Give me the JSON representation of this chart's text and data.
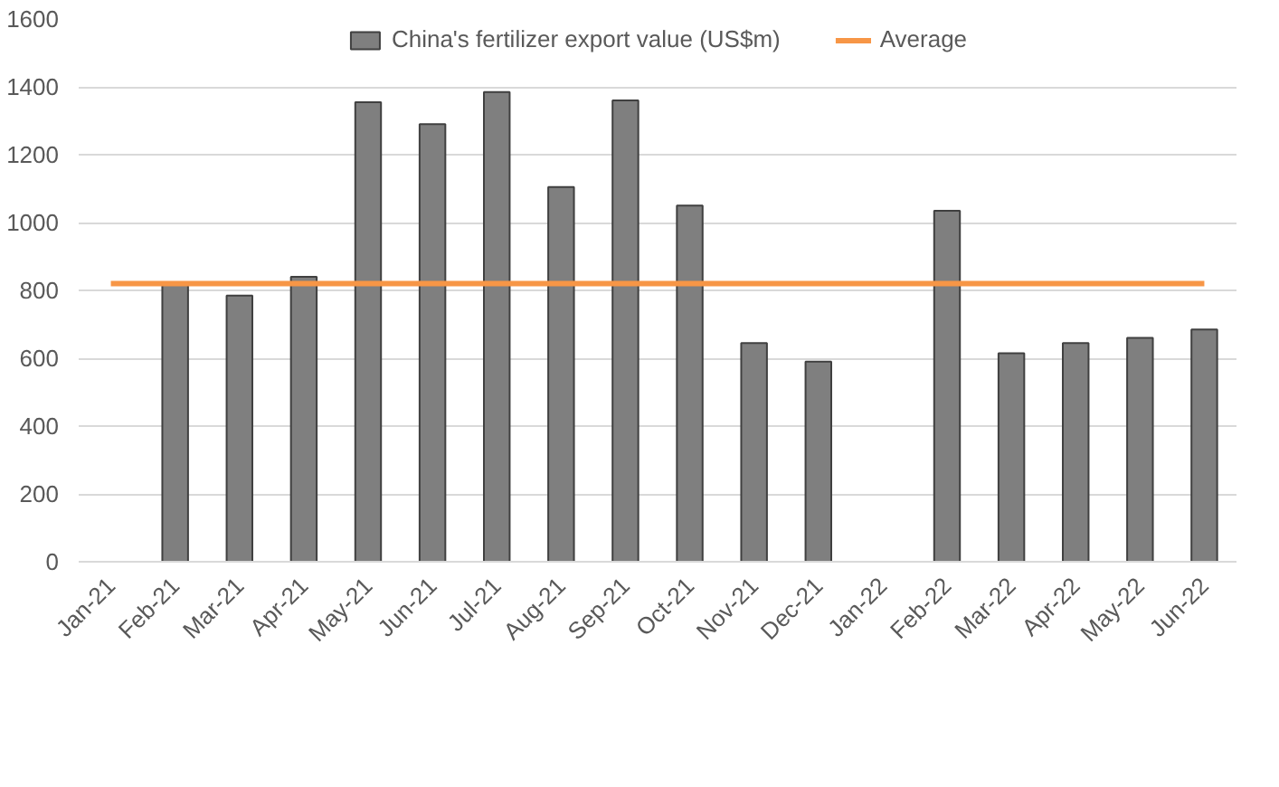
{
  "chart_data": {
    "type": "bar",
    "categories": [
      "Jan-21",
      "Feb-21",
      "Mar-21",
      "Apr-21",
      "May-21",
      "Jun-21",
      "Jul-21",
      "Aug-21",
      "Sep-21",
      "Oct-21",
      "Nov-21",
      "Dec-21",
      "Jan-22",
      "Feb-22",
      "Mar-22",
      "Apr-22",
      "May-22",
      "Jun-22"
    ],
    "series": [
      {
        "name": "China's fertilizer export value (US$m)",
        "color": "#7f7f7f",
        "values": [
          null,
          820,
          785,
          840,
          1355,
          1290,
          1385,
          1105,
          1360,
          1050,
          645,
          590,
          null,
          1035,
          615,
          645,
          660,
          685
        ]
      },
      {
        "name": "Average",
        "type": "line",
        "color": "#f79646",
        "values": [
          820,
          820,
          820,
          820,
          820,
          820,
          820,
          820,
          820,
          820,
          820,
          820,
          820,
          820,
          820,
          820,
          820,
          820
        ]
      }
    ],
    "ylim": [
      0,
      1600
    ],
    "yticks": [
      0,
      200,
      400,
      600,
      800,
      1000,
      1200,
      1400,
      1600
    ],
    "grid": "y",
    "legend": "top"
  }
}
